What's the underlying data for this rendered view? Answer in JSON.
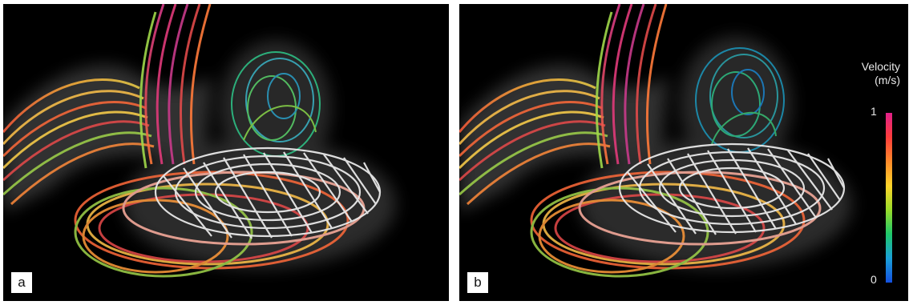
{
  "panels": [
    {
      "label": "a"
    },
    {
      "label": "b"
    }
  ],
  "colorbar": {
    "title_line1": "Velocity",
    "title_line2": "(m/s)",
    "max_label": "1",
    "min_label": "0",
    "colors": [
      "#e0208a",
      "#ff3c3c",
      "#ff8a2a",
      "#ffd42a",
      "#9adc2a",
      "#1ec86a",
      "#1aa0d8",
      "#1450e0"
    ]
  }
}
